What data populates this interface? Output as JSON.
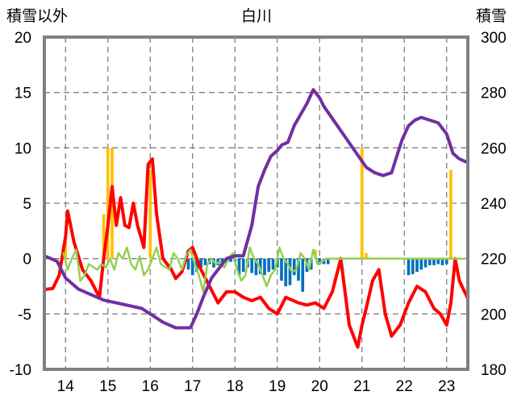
{
  "chart_data": {
    "type": "bar",
    "title": "白川",
    "left_axis_label": "積雪以外",
    "right_axis_label": "積雪",
    "left_axis": {
      "min": -10,
      "max": 20,
      "ticks": [
        "-10",
        "-5",
        "0",
        "5",
        "10",
        "15",
        "20"
      ]
    },
    "right_axis": {
      "min": 180,
      "max": 300,
      "ticks": [
        "180",
        "200",
        "220",
        "240",
        "260",
        "280",
        "300"
      ]
    },
    "x_axis": {
      "min": 13.5,
      "max": 23.5,
      "ticks": [
        "14",
        "15",
        "16",
        "17",
        "18",
        "19",
        "20",
        "21",
        "22",
        "23"
      ]
    },
    "grid": true,
    "colors": {
      "bars_positive": "#ffc000",
      "bars_negative": "#0070c0",
      "red_line": "#ff0000",
      "green_line": "#92d050",
      "purple_line": "#7030a0",
      "frame": "#808080",
      "grid": "#808080"
    },
    "series": [
      {
        "kind": "bar",
        "axis": "left",
        "x": [
          14.0,
          14.1,
          14.2,
          14.3,
          14.4,
          14.5,
          14.6,
          14.7,
          14.8,
          14.9,
          15.0,
          15.1,
          15.2,
          15.3,
          15.4,
          15.5,
          15.6,
          15.7,
          15.8,
          15.9,
          16.0,
          16.1,
          16.2,
          16.3,
          16.4,
          16.5,
          16.6,
          16.7,
          16.8,
          16.9,
          17.0,
          17.1,
          17.2,
          17.3,
          17.4,
          17.5,
          17.6,
          17.7,
          17.8,
          17.9,
          18.0,
          18.1,
          18.2,
          18.3,
          18.4,
          18.5,
          18.6,
          18.7,
          18.8,
          18.9,
          19.0,
          19.1,
          19.2,
          19.3,
          19.4,
          19.5,
          19.6,
          19.7,
          19.8,
          19.9,
          20.0,
          20.1,
          20.2,
          20.3,
          20.4,
          20.5,
          20.6,
          20.7,
          20.8,
          20.9,
          21.0,
          21.1,
          21.2,
          21.3,
          21.4,
          21.5,
          21.6,
          21.7,
          21.8,
          21.9,
          22.0,
          22.1,
          22.2,
          22.3,
          22.4,
          22.5,
          22.6,
          22.7,
          22.8,
          22.9,
          23.0,
          23.1,
          23.2,
          23.3,
          23.4
        ],
        "values": [
          2,
          0,
          0,
          0,
          0,
          0,
          0,
          0,
          0,
          4,
          10,
          10,
          0,
          0,
          0,
          0,
          0,
          0,
          0,
          0,
          8,
          0,
          0,
          0,
          0,
          0,
          0,
          0,
          0,
          -1,
          -1.5,
          -1.2,
          -0.8,
          -0.6,
          -0.5,
          -0.8,
          -0.6,
          -0.5,
          -0.4,
          -0.3,
          -0.3,
          -1.5,
          -1.2,
          -0.8,
          -1.3,
          -1.5,
          -1.4,
          -1.5,
          -1.2,
          -1,
          -0.8,
          -2,
          -2.5,
          -2.4,
          -1.5,
          -2,
          -3,
          -1.2,
          -1,
          0.8,
          -0.5,
          -0.5,
          -0.5,
          0,
          0,
          0,
          0,
          0,
          0,
          0,
          10,
          0.5,
          0,
          0,
          0,
          0,
          0,
          0,
          0,
          0,
          0,
          -1.5,
          -1.4,
          -1.2,
          -1,
          -0.8,
          -0.6,
          -0.6,
          -0.5,
          -0.6,
          -0.5,
          8,
          0,
          0,
          0
        ]
      },
      {
        "kind": "line",
        "axis": "left",
        "color": "#ff0000",
        "x": [
          13.5,
          13.7,
          13.85,
          14.0,
          14.05,
          14.2,
          14.4,
          14.6,
          14.8,
          14.9,
          15.0,
          15.1,
          15.2,
          15.3,
          15.4,
          15.5,
          15.6,
          15.7,
          15.85,
          15.95,
          16.05,
          16.15,
          16.3,
          16.5,
          16.6,
          16.75,
          16.9,
          17.0,
          17.2,
          17.4,
          17.6,
          17.8,
          18.0,
          18.2,
          18.4,
          18.6,
          18.8,
          19.0,
          19.2,
          19.5,
          19.7,
          19.9,
          20.1,
          20.3,
          20.5,
          20.7,
          20.9,
          21.0,
          21.1,
          21.25,
          21.4,
          21.55,
          21.7,
          21.8,
          21.9,
          22.1,
          22.3,
          22.5,
          22.7,
          22.85,
          23.0,
          23.1,
          23.2,
          23.3,
          23.4,
          23.5
        ],
        "values": [
          -2.8,
          -2.7,
          -1.5,
          2,
          4.3,
          1.5,
          -1,
          -2,
          -3.5,
          0,
          3,
          6.5,
          3,
          5.5,
          3,
          2.8,
          5,
          3,
          1,
          8.5,
          9,
          4,
          0,
          -1,
          -1.8,
          -1.2,
          0.7,
          1,
          -1,
          -2.5,
          -4,
          -3,
          -3,
          -3.5,
          -3.8,
          -3.5,
          -4.5,
          -5,
          -3.5,
          -4,
          -4.2,
          -4,
          -4.5,
          -3,
          0,
          -6,
          -8,
          -6,
          -4.5,
          -2,
          -1,
          -5,
          -7,
          -6.5,
          -6,
          -4,
          -2.5,
          -3,
          -4.5,
          -5,
          -6,
          -4,
          0,
          -2,
          -2.8,
          -3.6
        ]
      },
      {
        "kind": "line",
        "axis": "left",
        "color": "#92d050",
        "x": [
          13.95,
          14.05,
          14.15,
          14.25,
          14.35,
          14.45,
          14.55,
          14.75,
          14.85,
          14.95,
          15.05,
          15.15,
          15.25,
          15.35,
          15.45,
          15.55,
          15.65,
          15.75,
          15.85,
          15.95,
          16.05,
          16.15,
          16.25,
          16.45,
          16.55,
          16.65,
          16.75,
          16.85,
          16.95,
          17.05,
          17.15,
          17.25,
          17.35,
          17.45,
          17.55,
          17.65,
          17.75,
          17.85,
          17.95,
          18.05,
          18.15,
          18.25,
          18.35,
          18.45,
          18.55,
          18.65,
          18.75,
          18.85,
          18.95,
          19.05,
          19.15,
          19.25,
          19.35,
          19.45,
          19.55,
          19.65,
          19.75,
          19.85,
          19.95,
          20.05,
          20.15,
          20.25,
          20.35,
          20.45,
          20.55,
          20.65,
          20.75,
          20.85,
          20.95,
          21.05,
          21.15,
          21.25,
          21.35,
          21.45,
          21.55,
          21.65,
          21.75,
          21.85,
          21.95,
          22.05,
          22.15,
          22.25,
          22.35,
          22.45,
          22.55,
          22.65,
          22.75,
          22.85,
          22.95,
          23.05,
          23.15,
          23.25,
          23.35,
          23.45
        ],
        "values": [
          0.5,
          -1,
          0,
          0.8,
          -2,
          -1.5,
          -0.5,
          -1,
          -0.5,
          -0.8,
          0,
          -1,
          0.5,
          0,
          1,
          -0.5,
          -1,
          0.2,
          -1.5,
          -1,
          0,
          1,
          -0.5,
          -1,
          0.5,
          0,
          -1,
          0.3,
          0.8,
          -0.5,
          -1.5,
          -3,
          -0.5,
          0,
          -0.5,
          -0.3,
          -0.8,
          0,
          0.5,
          -1,
          -2,
          -1.5,
          1,
          0,
          -0.5,
          -1.5,
          -2.5,
          -1.5,
          -1,
          1,
          0,
          -0.5,
          -1.2,
          -1,
          0.5,
          0,
          -1,
          0.8,
          -0.5,
          -0.3,
          0,
          0,
          0,
          0,
          0,
          0,
          0,
          0,
          0,
          0,
          0,
          0,
          0,
          0,
          0,
          0,
          0,
          0,
          0,
          0,
          0,
          0,
          0,
          0,
          0,
          0,
          0,
          0,
          0,
          0,
          0,
          0,
          0,
          0
        ]
      },
      {
        "kind": "line",
        "axis": "right",
        "color": "#7030a0",
        "x": [
          13.5,
          13.8,
          14.0,
          14.3,
          14.6,
          14.9,
          15.2,
          15.5,
          15.8,
          16.0,
          16.3,
          16.6,
          16.8,
          16.95,
          17.1,
          17.25,
          17.45,
          17.6,
          17.8,
          18.0,
          18.2,
          18.4,
          18.55,
          18.7,
          18.85,
          19.0,
          19.1,
          19.25,
          19.4,
          19.55,
          19.7,
          19.85,
          20.0,
          20.1,
          21.1,
          21.3,
          21.5,
          21.7,
          21.8,
          21.95,
          22.1,
          22.25,
          22.4,
          22.6,
          22.8,
          23.0,
          23.15,
          23.3,
          23.45
        ],
        "values": [
          221,
          219,
          213,
          209,
          207,
          205,
          204,
          203,
          202,
          200,
          197,
          195,
          195,
          195,
          200,
          206,
          213,
          216,
          220,
          221,
          221,
          232,
          246,
          252,
          257,
          259,
          261,
          262,
          268,
          272,
          276,
          281,
          278,
          275,
          253,
          251,
          250,
          251,
          256,
          263,
          268,
          270,
          271,
          270,
          269,
          265,
          258,
          256,
          255
        ]
      }
    ]
  }
}
